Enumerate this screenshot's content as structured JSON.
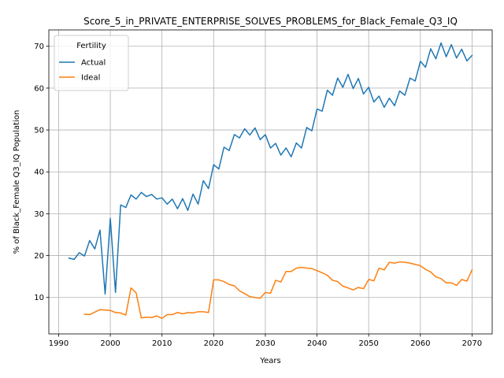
{
  "chart_data": {
    "type": "line",
    "title": "Score_5_in_PRIVATE_ENTERPRISE_SOLVES_PROBLEMS_for_Black_Female_Q3_IQ",
    "xlabel": "Years",
    "ylabel": "% of Black_Female Q3_IQ Population",
    "xlim": [
      1988.1,
      2073.9
    ],
    "ylim": [
      1.3,
      73.9
    ],
    "xticks": [
      1990,
      2000,
      2010,
      2020,
      2030,
      2040,
      2050,
      2060,
      2070
    ],
    "yticks": [
      10,
      20,
      30,
      40,
      50,
      60,
      70
    ],
    "grid": true,
    "legend": {
      "title": "Fertility",
      "position": "upper-left"
    },
    "series": [
      {
        "name": "Actual",
        "color": "#1f77b4",
        "x": [
          1992,
          1993,
          1994,
          1995,
          1996,
          1997,
          1998,
          1999,
          2000,
          2001,
          2002,
          2003,
          2004,
          2005,
          2006,
          2007,
          2008,
          2009,
          2010,
          2011,
          2012,
          2013,
          2014,
          2015,
          2016,
          2017,
          2018,
          2019,
          2020,
          2021,
          2022,
          2023,
          2024,
          2025,
          2026,
          2027,
          2028,
          2029,
          2030,
          2031,
          2032,
          2033,
          2034,
          2035,
          2036,
          2037,
          2038,
          2039,
          2040,
          2041,
          2042,
          2043,
          2044,
          2045,
          2046,
          2047,
          2048,
          2049,
          2050,
          2051,
          2052,
          2053,
          2054,
          2055,
          2056,
          2057,
          2058,
          2059,
          2060,
          2061,
          2062,
          2063,
          2064,
          2065,
          2066,
          2067,
          2068,
          2069,
          2070
        ],
        "values": [
          19.4,
          19.1,
          20.7,
          19.9,
          23.6,
          21.6,
          26.1,
          10.8,
          28.9,
          11.2,
          32.1,
          31.5,
          34.5,
          33.5,
          35.1,
          34.1,
          34.6,
          33.5,
          33.8,
          32.3,
          33.5,
          31.2,
          33.6,
          30.8,
          34.7,
          32.3,
          37.9,
          36.0,
          41.7,
          40.7,
          45.9,
          45.1,
          48.9,
          48.1,
          50.3,
          48.8,
          50.5,
          47.7,
          48.9,
          45.7,
          46.8,
          44.0,
          45.7,
          43.6,
          46.9,
          45.7,
          50.6,
          49.8,
          55.0,
          54.5,
          59.5,
          58.3,
          62.4,
          60.2,
          63.3,
          59.9,
          62.3,
          58.6,
          60.2,
          56.7,
          58.1,
          55.4,
          57.6,
          55.8,
          59.3,
          58.3,
          62.4,
          61.7,
          66.4,
          65.0,
          69.4,
          67.0,
          70.8,
          67.5,
          70.4,
          67.2,
          69.3,
          66.5,
          67.8
        ]
      },
      {
        "name": "Ideal",
        "color": "#ff7f0e",
        "x": [
          1995,
          1996,
          1997,
          1998,
          1999,
          2000,
          2001,
          2002,
          2003,
          2004,
          2005,
          2006,
          2007,
          2008,
          2009,
          2010,
          2011,
          2012,
          2013,
          2014,
          2015,
          2016,
          2017,
          2018,
          2019,
          2020,
          2021,
          2022,
          2023,
          2024,
          2025,
          2026,
          2027,
          2028,
          2029,
          2030,
          2031,
          2032,
          2033,
          2034,
          2035,
          2036,
          2037,
          2038,
          2039,
          2040,
          2041,
          2042,
          2043,
          2044,
          2045,
          2046,
          2047,
          2048,
          2049,
          2050,
          2051,
          2052,
          2053,
          2054,
          2055,
          2056,
          2057,
          2058,
          2059,
          2060,
          2061,
          2062,
          2063,
          2064,
          2065,
          2066,
          2067,
          2068,
          2069,
          2070
        ],
        "values": [
          6.0,
          5.9,
          6.5,
          7.1,
          7.0,
          6.9,
          6.4,
          6.3,
          5.8,
          12.3,
          11.1,
          5.1,
          5.3,
          5.2,
          5.6,
          5.0,
          5.9,
          5.9,
          6.4,
          6.1,
          6.4,
          6.3,
          6.6,
          6.6,
          6.4,
          14.2,
          14.2,
          13.8,
          13.1,
          12.8,
          11.6,
          10.9,
          10.2,
          10.0,
          9.8,
          11.2,
          11.0,
          14.1,
          13.7,
          16.2,
          16.2,
          17.0,
          17.2,
          17.0,
          16.9,
          16.4,
          15.9,
          15.3,
          14.1,
          13.8,
          12.7,
          12.3,
          11.8,
          12.4,
          12.1,
          14.3,
          14.0,
          17.0,
          16.6,
          18.4,
          18.2,
          18.5,
          18.4,
          18.2,
          17.9,
          17.6,
          16.7,
          16.1,
          14.9,
          14.5,
          13.5,
          13.5,
          12.9,
          14.3,
          13.9,
          16.6
        ]
      }
    ]
  }
}
